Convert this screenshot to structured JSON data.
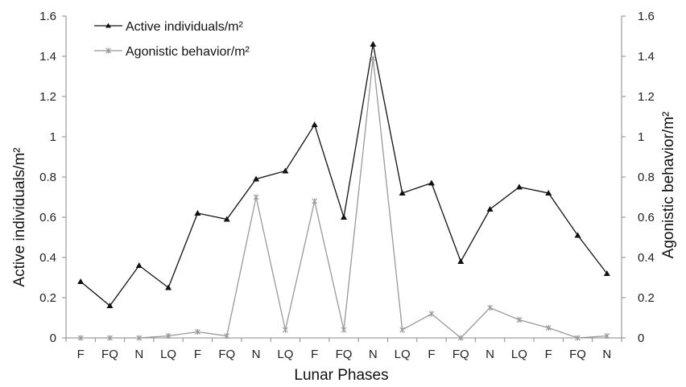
{
  "chart_data": {
    "type": "line",
    "title": "",
    "xlabel": "Lunar Phases",
    "ylabel": "Active individuals/m²",
    "ylabel_right": "Agonistic behavior/m²",
    "categories": [
      "F",
      "FQ",
      "N",
      "LQ",
      "F",
      "FQ",
      "N",
      "LQ",
      "F",
      "FQ",
      "N",
      "LQ",
      "F",
      "FQ",
      "N",
      "LQ",
      "F",
      "FQ",
      "N"
    ],
    "ylim": [
      0,
      1.6
    ],
    "ylim_right": [
      0,
      1.6
    ],
    "yticks": [
      "0",
      "0.2",
      "0.4",
      "0.6",
      "0.8",
      "1",
      "1.2",
      "1.4",
      "1.6"
    ],
    "grid": false,
    "legend_position": "top-left",
    "series": [
      {
        "name": "Active individuals/m²",
        "axis": "left",
        "color": "#111111",
        "marker": "triangle",
        "values": [
          0.28,
          0.16,
          0.36,
          0.25,
          0.62,
          0.59,
          0.79,
          0.83,
          1.06,
          0.6,
          1.46,
          0.72,
          0.77,
          0.38,
          0.64,
          0.75,
          0.72,
          0.51,
          0.32
        ]
      },
      {
        "name": "Agonistic behavior/m²",
        "axis": "right",
        "color": "#999999",
        "marker": "star",
        "values": [
          0,
          0,
          0,
          0.01,
          0.03,
          0.01,
          0.7,
          0.04,
          0.68,
          0.04,
          1.39,
          0.04,
          0.12,
          0,
          0.15,
          0.09,
          0.05,
          0,
          0.01
        ]
      }
    ]
  }
}
